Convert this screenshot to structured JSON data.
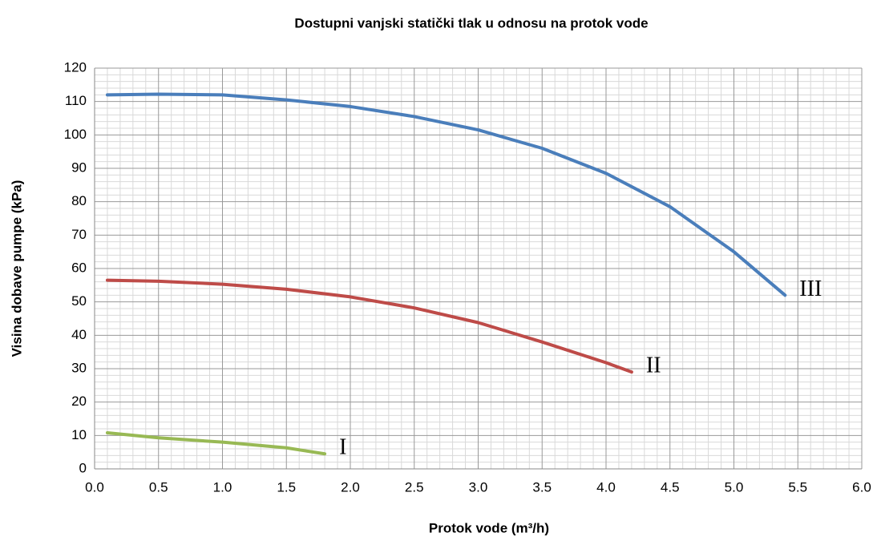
{
  "chart_data": {
    "type": "line",
    "title": "Dostupni vanjski statički tlak u odnosu na protok vode",
    "xlabel": "Protok vode (m³/h)",
    "ylabel": "Visina dobave pumpe (kPa)",
    "xlim": [
      0,
      6
    ],
    "ylim": [
      0,
      120
    ],
    "xticks": [
      {
        "value": 0,
        "label": "0.0"
      },
      0.5,
      {
        "value": 1,
        "label": "1.0"
      },
      1.5,
      {
        "value": 2,
        "label": "2.0"
      },
      2.5,
      {
        "value": 3,
        "label": "3.0"
      },
      3.5,
      {
        "value": 4,
        "label": "4.0"
      },
      4.5,
      {
        "value": 5,
        "label": "5.0"
      },
      5.5,
      {
        "value": 6,
        "label": "6.0"
      }
    ],
    "yticks": [
      0,
      10,
      20,
      30,
      40,
      50,
      60,
      70,
      80,
      90,
      100,
      110,
      120
    ],
    "grid": true,
    "minor_grid": true,
    "series": [
      {
        "name": "I",
        "color": "#98b954",
        "x": [
          0.1,
          0.5,
          1.0,
          1.5,
          1.8
        ],
        "values": [
          10.8,
          9.3,
          8,
          6.3,
          4.5
        ]
      },
      {
        "name": "II",
        "color": "#be4b48",
        "x": [
          0.1,
          0.5,
          1.0,
          1.5,
          2.0,
          2.5,
          3.0,
          3.5,
          4.0,
          4.2
        ],
        "values": [
          56.5,
          56.2,
          55.3,
          53.8,
          51.5,
          48.2,
          43.8,
          38,
          31.8,
          29
        ]
      },
      {
        "name": "III",
        "color": "#4a7ebb",
        "x": [
          0.1,
          0.5,
          1.0,
          1.5,
          2.0,
          2.5,
          3.0,
          3.5,
          4.0,
          4.5,
          5.0,
          5.4
        ],
        "values": [
          112,
          112.2,
          112,
          110.5,
          108.5,
          105.5,
          101.5,
          96,
          88.5,
          78.5,
          65,
          52
        ]
      }
    ]
  }
}
